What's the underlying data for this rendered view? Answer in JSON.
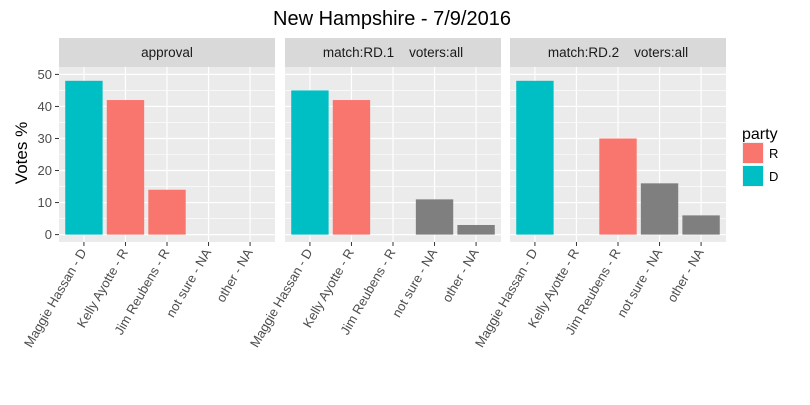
{
  "chart_data": {
    "type": "bar",
    "title": "New Hampshire - 7/9/2016",
    "xlabel": "",
    "ylabel": "Votes %",
    "ylim": [
      0,
      50
    ],
    "yticks": [
      0,
      10,
      20,
      30,
      40,
      50
    ],
    "grid": true,
    "legend_position": "right",
    "categories": [
      "Maggie Hassan - D",
      "Kelly Ayotte - R",
      "Jim Reubens - R",
      "not sure - NA",
      "other - NA"
    ],
    "party_of_category": [
      "D",
      "R",
      "R",
      "NA",
      "NA"
    ],
    "panels": [
      {
        "strip": "approval",
        "values": [
          48,
          42,
          14,
          null,
          null
        ]
      },
      {
        "strip": "match:RD.1    voters:all",
        "values": [
          45,
          42,
          null,
          11,
          3
        ]
      },
      {
        "strip": "match:RD.2    voters:all",
        "values": [
          48,
          null,
          30,
          16,
          6
        ]
      }
    ],
    "legend": {
      "title": "party",
      "entries": [
        {
          "label": "R",
          "color": "#F8766D"
        },
        {
          "label": "D",
          "color": "#00BFC4"
        }
      ]
    },
    "colors": {
      "D": "#00BFC4",
      "R": "#F8766D",
      "NA": "#7F7F7F",
      "panel_background": "#EBEBEB",
      "strip_background": "#D9D9D9",
      "grid": "#FFFFFF"
    }
  }
}
